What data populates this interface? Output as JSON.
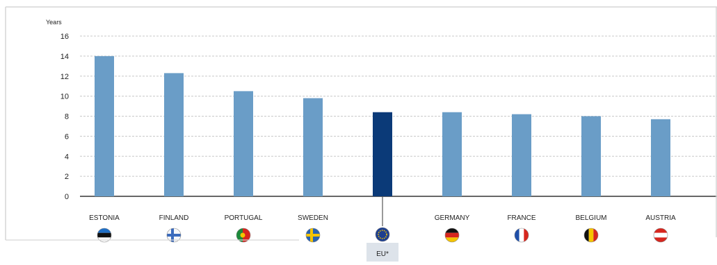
{
  "chart_data": {
    "type": "bar",
    "ylabel": "Years",
    "ylim": [
      0,
      16
    ],
    "yticks": [
      0,
      2,
      4,
      6,
      8,
      10,
      12,
      14,
      16
    ],
    "grid": true,
    "categories": [
      "ESTONIA",
      "FINLAND",
      "PORTUGAL",
      "SWEDEN",
      "EU*",
      "GERMANY",
      "FRANCE",
      "BELGIUM",
      "AUSTRIA"
    ],
    "values": [
      14.0,
      12.3,
      10.5,
      9.8,
      8.4,
      8.4,
      8.2,
      8.0,
      7.7
    ],
    "highlight_category": "EU*",
    "colors": {
      "bar": "#6a9dc7",
      "highlight": "#0b3a78",
      "grid": "#c8c8c8",
      "axis": "#333333",
      "eu_label_bg": "#dde3ea"
    },
    "flag_icons": [
      "estonia-flag-icon",
      "finland-flag-icon",
      "portugal-flag-icon",
      "sweden-flag-icon",
      "eu-flag-icon",
      "germany-flag-icon",
      "france-flag-icon",
      "belgium-flag-icon",
      "austria-flag-icon"
    ]
  }
}
